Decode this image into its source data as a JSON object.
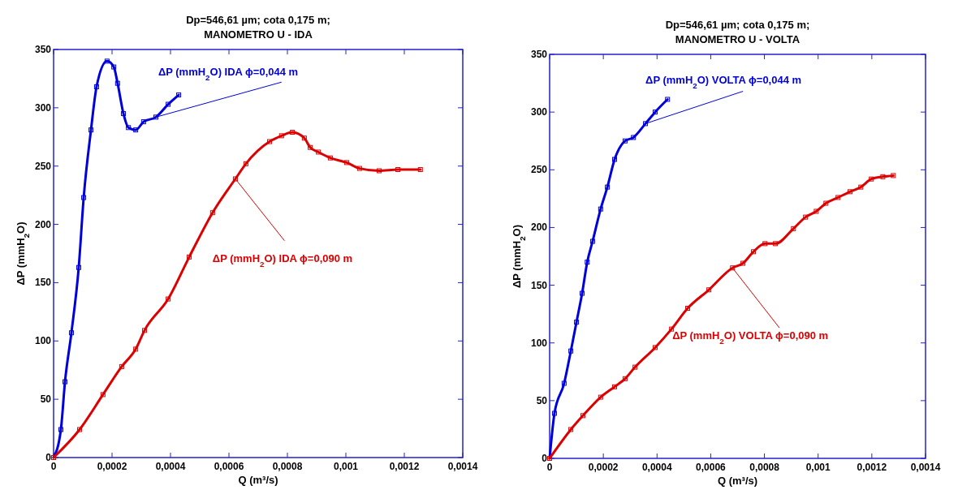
{
  "chart_data": [
    {
      "type": "line",
      "title": "Dp=546,61 µm; cota 0,175 m;",
      "subtitle": "MANOMETRO U - IDA",
      "xlabel": "Q (m³/s)",
      "ylabel": "ΔP (mmH$_{2}$O)",
      "marker": "square",
      "line_style": "solid",
      "legend": false,
      "grid": false,
      "xlim": [
        0,
        0.0014
      ],
      "xticks": [
        0,
        {
          "value": 0.0002,
          "label": "0,0002"
        },
        {
          "value": 0.0004,
          "label": "0,0004"
        },
        {
          "value": 0.0006,
          "label": "0,0006"
        },
        {
          "value": 0.0008,
          "label": "0,0008"
        },
        {
          "value": 0.001,
          "label": "0,001"
        },
        {
          "value": 0.0012,
          "label": "0,0012"
        },
        {
          "value": 0.0014,
          "label": "0,0014"
        }
      ],
      "ylim": [
        0,
        350
      ],
      "yticks": [
        0,
        50,
        100,
        150,
        200,
        250,
        300,
        350
      ],
      "series": [
        {
          "name": "ΔP (mmH$_{2}$O) IDA ϕ=0,044 m",
          "color": "#0000dd",
          "x": [
            0,
            2.5e-05,
            3.9e-05,
            6.1e-05,
            8.6e-05,
            0.000103,
            0.000128,
            0.000147,
            0.000183,
            0.000206,
            0.000219,
            0.000239,
            0.000256,
            0.000281,
            0.000308,
            0.00035,
            0.000392,
            0.000428
          ],
          "values": [
            0,
            24,
            65,
            107,
            163,
            223,
            281,
            318,
            340,
            335,
            321,
            295,
            283,
            281,
            288,
            292,
            303,
            311
          ]
        },
        {
          "name": "ΔP (mmH$_{2}$O) IDA ϕ=0,090 m",
          "color": "#dd0000",
          "x": [
            0,
            8.9e-05,
            0.000169,
            0.000233,
            0.000281,
            0.000311,
            0.000392,
            0.000464,
            0.000544,
            0.000622,
            0.000658,
            0.000739,
            0.00078,
            0.000817,
            0.000858,
            0.000878,
            0.000906,
            0.000947,
            0.001003,
            0.001047,
            0.001114,
            0.001178,
            0.001255
          ],
          "values": [
            0,
            24,
            54,
            78,
            93,
            109,
            136,
            172,
            210,
            239,
            252,
            271,
            276,
            279,
            274,
            266,
            262,
            257,
            253,
            248,
            246,
            247,
            247
          ]
        }
      ]
    },
    {
      "type": "line",
      "title": "Dp=546,61 µm; cota 0,175 m;",
      "subtitle": "MANOMETRO U - VOLTA",
      "xlabel": "Q (m³/s)",
      "ylabel": "ΔP (mmH$_{2}$O)",
      "marker": "square",
      "line_style": "solid",
      "legend": false,
      "grid": false,
      "xlim": [
        0,
        0.0014
      ],
      "xticks": [
        0,
        {
          "value": 0.0002,
          "label": "0,0002"
        },
        {
          "value": 0.0004,
          "label": "0,0004"
        },
        {
          "value": 0.0006,
          "label": "0,0006"
        },
        {
          "value": 0.0008,
          "label": "0,0008"
        },
        {
          "value": 0.001,
          "label": "0,001"
        },
        {
          "value": 0.0012,
          "label": "0,0012"
        },
        {
          "value": 0.0014,
          "label": "0,0014"
        }
      ],
      "ylim": [
        0,
        350
      ],
      "yticks": [
        0,
        50,
        100,
        150,
        200,
        250,
        300,
        350
      ],
      "series": [
        {
          "name": "ΔP (mmH$_{2}$O) VOLTA ϕ=0,044 m",
          "color": "#0000dd",
          "x": [
            0,
            1.8e-05,
            5.4e-05,
            7.9e-05,
            0.0001,
            0.000121,
            0.00014,
            0.00016,
            0.00019,
            0.000215,
            0.000242,
            0.000281,
            0.000312,
            0.000357,
            0.000393,
            0.000439
          ],
          "values": [
            0,
            39,
            65,
            93,
            118,
            143,
            170,
            188,
            216,
            235,
            259,
            275,
            278,
            290,
            300,
            311
          ]
        },
        {
          "name": "ΔP (mmH$_{2}$O) VOLTA ϕ=0,090 m",
          "color": "#dd0000",
          "x": [
            0,
            7.9e-05,
            0.000124,
            0.00019,
            0.000242,
            0.000281,
            0.000318,
            0.000393,
            0.000454,
            0.000514,
            0.000593,
            0.000681,
            0.00072,
            0.000759,
            0.000802,
            0.000841,
            0.000908,
            0.000953,
            0.000993,
            0.001029,
            0.001074,
            0.001119,
            0.001159,
            0.001198,
            0.001241,
            0.00128
          ],
          "values": [
            0,
            25,
            37,
            53,
            62,
            69,
            79,
            96,
            112,
            130,
            146,
            165,
            169,
            179,
            186,
            186,
            199,
            209,
            214,
            221,
            226,
            231,
            235,
            242,
            244,
            245
          ]
        }
      ]
    }
  ]
}
